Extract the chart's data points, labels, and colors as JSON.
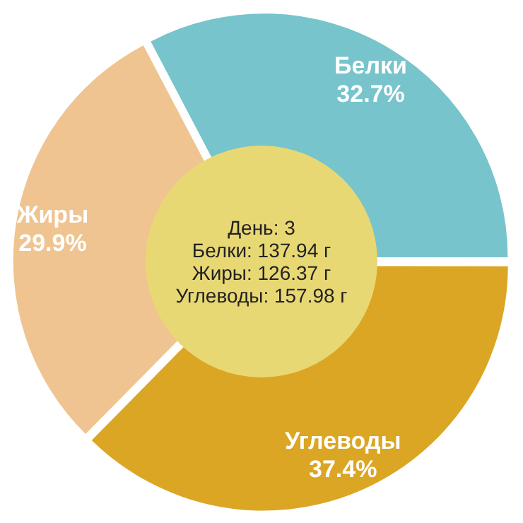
{
  "chart_data": {
    "type": "donut",
    "categories": [
      "Белки",
      "Углеводы",
      "Жиры"
    ],
    "values": [
      32.7,
      37.4,
      29.9
    ],
    "colors": [
      "#77c4cc",
      "#dba624",
      "#efc490"
    ],
    "value_labels": [
      "32.7%",
      "37.4%",
      "29.9%"
    ],
    "legend": false,
    "annotations": [
      "День: 3",
      "Белки: 137.94 г",
      "Жиры: 126.37 г",
      "Углеводы: 157.98 г"
    ]
  }
}
